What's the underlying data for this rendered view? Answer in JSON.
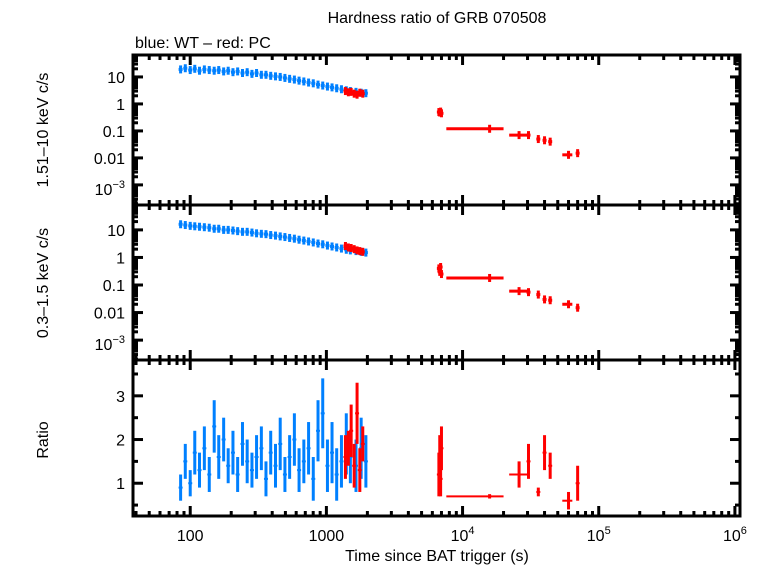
{
  "chart_data": {
    "type": "scatter",
    "title": "Hardness ratio of GRB 070508",
    "subtitle": "blue: WT – red: PC",
    "xlabel": "Time since BAT trigger (s)",
    "xscale": "log",
    "xlim": [
      38,
      1090000
    ],
    "x_ticks": [
      {
        "base": "100",
        "exp": ""
      },
      {
        "base": "1000",
        "exp": ""
      },
      {
        "base": "10",
        "exp": "4"
      },
      {
        "base": "10",
        "exp": "5"
      },
      {
        "base": "10",
        "exp": "6"
      }
    ],
    "colors": {
      "WT": "#0080ff",
      "PC": "#ff0000"
    },
    "panels": [
      {
        "ylabel": "1.51–10 keV c/s",
        "yscale": "log",
        "ylim": [
          0.00018,
          65
        ],
        "y_ticks": [
          {
            "base": "10",
            "exp": ""
          },
          {
            "base": "1",
            "exp": ""
          },
          {
            "base": "0.1",
            "exp": ""
          },
          {
            "base": "0.01",
            "exp": ""
          },
          {
            "base": "10",
            "exp": "−3"
          }
        ]
      },
      {
        "ylabel": "0.3–1.5 keV c/s",
        "yscale": "log",
        "ylim": [
          0.00019,
          80
        ],
        "y_ticks": [
          {
            "base": "10",
            "exp": ""
          },
          {
            "base": "1",
            "exp": ""
          },
          {
            "base": "0.1",
            "exp": ""
          },
          {
            "base": "0.01",
            "exp": ""
          },
          {
            "base": "10",
            "exp": "−3"
          }
        ]
      },
      {
        "ylabel": "Ratio",
        "yscale": "linear",
        "ylim": [
          0.25,
          3.82
        ],
        "y_ticks": [
          {
            "base": "3",
            "exp": ""
          },
          {
            "base": "2",
            "exp": ""
          },
          {
            "base": "1",
            "exp": ""
          }
        ]
      }
    ],
    "series": [
      {
        "name": "WT",
        "t": [
          85,
          92,
          100,
          108,
          117,
          127,
          138,
          150,
          162,
          176,
          190,
          206,
          223,
          242,
          262,
          284,
          307,
          333,
          360,
          390,
          423,
          458,
          496,
          537,
          582,
          630,
          683,
          740,
          801,
          868,
          940,
          1018,
          1100,
          1190,
          1290,
          1400,
          1500,
          1650,
          1800,
          1950
        ],
        "hard": [
          19,
          21,
          18,
          20,
          17,
          19,
          18,
          17,
          18,
          16,
          17,
          15,
          16,
          14,
          15,
          13,
          14,
          12,
          12,
          11,
          10.5,
          10,
          9.2,
          8.5,
          8,
          7.3,
          6.8,
          6.2,
          5.8,
          5.2,
          4.8,
          4.4,
          4.1,
          3.8,
          3.5,
          3.2,
          3,
          2.8,
          2.6,
          2.5
        ],
        "soft": [
          16,
          15,
          14,
          13.5,
          13,
          12.5,
          12,
          11,
          11,
          10,
          10,
          9.5,
          9,
          8.5,
          8.5,
          8,
          7.5,
          7.2,
          7,
          6.5,
          6.2,
          5.8,
          5.5,
          5.1,
          4.8,
          4.4,
          4.1,
          3.8,
          3.5,
          3.2,
          3,
          2.7,
          2.5,
          2.3,
          2.1,
          1.9,
          1.8,
          1.7,
          1.6,
          1.5
        ],
        "ratio": [
          0.9,
          1.5,
          1.0,
          1.7,
          1.3,
          1.8,
          1.2,
          2.3,
          1.6,
          2.0,
          1.4,
          1.7,
          1.2,
          1.9,
          1.5,
          1.3,
          1.6,
          1.8,
          1.1,
          1.7,
          1.4,
          1.9,
          1.2,
          1.6,
          2.0,
          1.3,
          1.5,
          1.8,
          1.1,
          2.2,
          2.6,
          1.4,
          1.7,
          1.2,
          1.5,
          1.9,
          1.6,
          1.4,
          1.8,
          1.5
        ],
        "ratio_err": [
          0.3,
          0.4,
          0.3,
          0.5,
          0.4,
          0.5,
          0.4,
          0.6,
          0.5,
          0.5,
          0.4,
          0.5,
          0.4,
          0.5,
          0.5,
          0.4,
          0.5,
          0.5,
          0.4,
          0.5,
          0.5,
          0.6,
          0.4,
          0.5,
          0.6,
          0.5,
          0.5,
          0.6,
          0.5,
          0.7,
          0.8,
          0.6,
          0.7,
          0.6,
          0.6,
          0.7,
          0.6,
          0.6,
          0.7,
          0.6
        ],
        "t_lo": [],
        "t_hi": []
      },
      {
        "name": "PC",
        "t": [
          1380,
          1450,
          1520,
          1600,
          1680,
          1760,
          1850,
          6700,
          6800,
          6900,
          7000,
          15800,
          26000,
          30500,
          36000,
          40000,
          44000,
          60000,
          70000
        ],
        "t_lo": [
          null,
          null,
          null,
          null,
          null,
          null,
          null,
          null,
          null,
          null,
          null,
          7600,
          22000,
          null,
          null,
          null,
          null,
          54000,
          null
        ],
        "t_hi": [
          null,
          null,
          null,
          null,
          null,
          null,
          null,
          null,
          null,
          null,
          null,
          20000,
          30000,
          null,
          null,
          null,
          null,
          64000,
          null
        ],
        "hard": [
          3.0,
          2.7,
          2.8,
          2.4,
          2.2,
          2.6,
          2.4,
          0.5,
          0.48,
          0.52,
          0.45,
          0.12,
          0.07,
          0.07,
          0.05,
          0.045,
          0.04,
          0.013,
          0.015
        ],
        "soft": [
          2.6,
          2.3,
          2.2,
          2.0,
          1.8,
          1.7,
          1.6,
          0.4,
          0.3,
          0.45,
          0.25,
          0.18,
          0.06,
          0.055,
          0.045,
          0.03,
          0.028,
          0.02,
          0.015
        ],
        "ratio": [
          1.6,
          1.8,
          2.2,
          1.4,
          2.6,
          1.3,
          1.9,
          1.2,
          1.6,
          1.1,
          1.8,
          0.7,
          1.2,
          1.5,
          0.8,
          1.7,
          1.4,
          0.6,
          1.0
        ],
        "ratio_err": [
          0.5,
          0.4,
          0.6,
          0.5,
          0.7,
          0.5,
          0.4,
          0.5,
          0.5,
          0.4,
          0.5,
          0.05,
          0.3,
          0.4,
          0.1,
          0.4,
          0.3,
          0.2,
          0.4
        ]
      }
    ]
  }
}
